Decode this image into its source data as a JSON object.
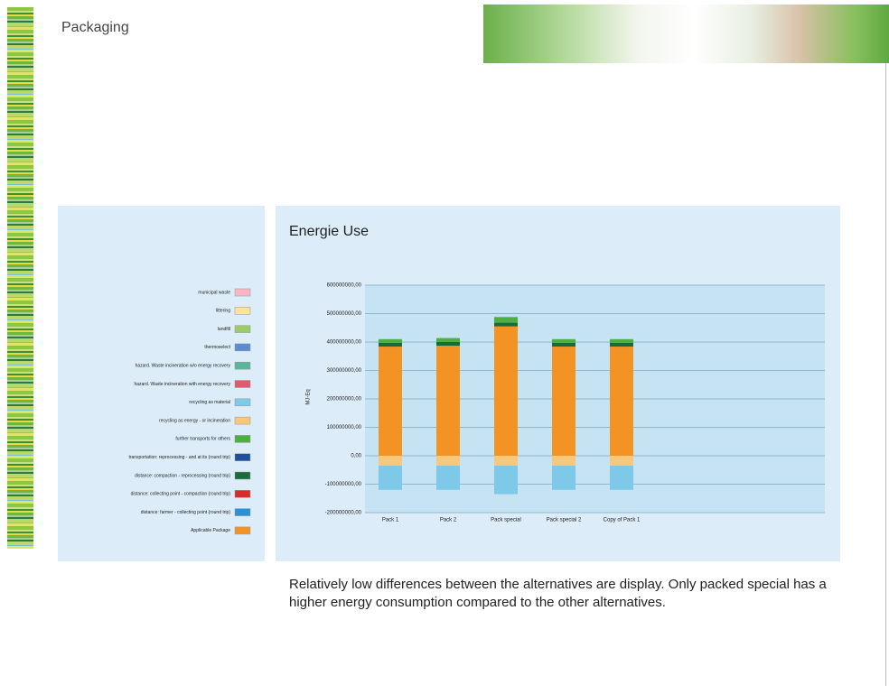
{
  "page": {
    "title": "Packaging",
    "caption": "Relatively low differences between the alternatives are display. Only packed special has a higher energy consumption compared to the other alternatives."
  },
  "chart_data": {
    "type": "bar",
    "stacked": true,
    "title": "Energie Use",
    "y_label": "MJ-Eq",
    "categories": [
      "Pack 1",
      "Pack 2",
      "Pack special",
      "Pack special 2",
      "Copy of Pack 1"
    ],
    "ylim": [
      -200000000,
      600000000
    ],
    "yticks": [
      {
        "value": 600000000,
        "label": "600000000,00"
      },
      {
        "value": 500000000,
        "label": "500000000,00"
      },
      {
        "value": 400000000,
        "label": "400000000,00"
      },
      {
        "value": 300000000,
        "label": "300000000,00"
      },
      {
        "value": 200000000,
        "label": "200000000,00"
      },
      {
        "value": 100000000,
        "label": "100000000,00"
      },
      {
        "value": 0,
        "label": "0,00"
      },
      {
        "value": -100000000,
        "label": "-100000000,00"
      },
      {
        "value": -200000000,
        "label": "-200000000,00"
      }
    ],
    "grid": true,
    "series": [
      {
        "name": "municipal waste",
        "color": "#f7b6c2",
        "values": [
          0,
          0,
          0,
          0,
          0
        ]
      },
      {
        "name": "littering",
        "color": "#fde29a",
        "values": [
          0,
          0,
          0,
          0,
          0
        ]
      },
      {
        "name": "landfill",
        "color": "#9ccc65",
        "values": [
          0,
          0,
          0,
          0,
          0
        ]
      },
      {
        "name": "thermoselect",
        "color": "#5b8ccf",
        "values": [
          0,
          0,
          0,
          0,
          0
        ]
      },
      {
        "name": "hazard. Waste incineration w/o energy recovery",
        "color": "#5fb39a",
        "values": [
          0,
          0,
          0,
          0,
          0
        ]
      },
      {
        "name": "hazard. Waste incineration with energy recovery",
        "color": "#e05a6d",
        "values": [
          0,
          0,
          0,
          0,
          0
        ]
      },
      {
        "name": "recycling as material",
        "color": "#7ec8e8",
        "values": [
          -85000000,
          -85000000,
          -100000000,
          -85000000,
          -85000000
        ]
      },
      {
        "name": "recycling as energy - or incineration",
        "color": "#f9c77a",
        "values": [
          -35000000,
          -35000000,
          -35000000,
          -35000000,
          -35000000
        ]
      },
      {
        "name": "further transports for others",
        "color": "#4caf3f",
        "values": [
          13000000,
          14000000,
          20000000,
          13000000,
          13000000
        ]
      },
      {
        "name": "transportation: reprocessing - and at its (round trip)",
        "color": "#1f4e9c",
        "values": [
          0,
          0,
          0,
          0,
          0
        ]
      },
      {
        "name": "distance: compaction - reprocessing (round trip)",
        "color": "#1a6b3c",
        "values": [
          13000000,
          13000000,
          13000000,
          13000000,
          13000000
        ]
      },
      {
        "name": "distance: collecting point - compaction (round trip)",
        "color": "#d62c2c",
        "values": [
          0,
          0,
          0,
          0,
          0
        ]
      },
      {
        "name": "distance: farmer - collecting point (round trip)",
        "color": "#2f8fd6",
        "values": [
          0,
          0,
          0,
          0,
          0
        ]
      },
      {
        "name": "Applicable Package",
        "color": "#f39323",
        "values": [
          384000000,
          387000000,
          455000000,
          384000000,
          384000000
        ]
      }
    ]
  }
}
